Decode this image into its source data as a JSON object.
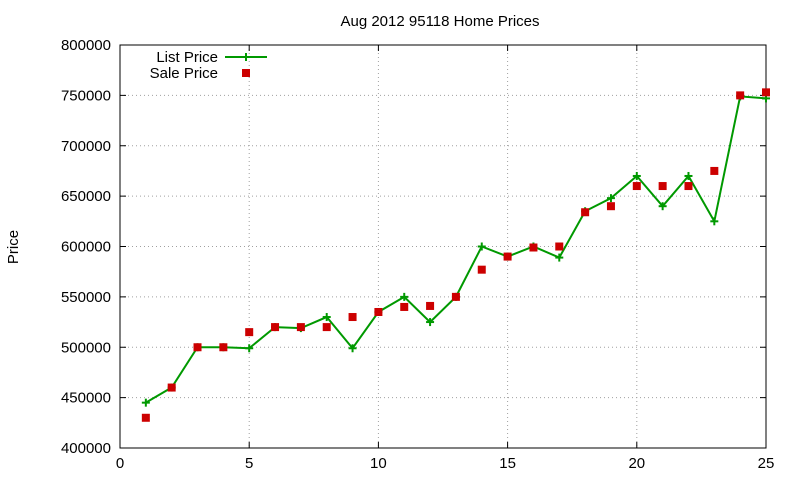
{
  "chart_data": {
    "type": "line",
    "title": "Aug 2012 95118 Home Prices",
    "xlabel": "",
    "ylabel": "Price",
    "xlim": [
      0,
      25
    ],
    "ylim": [
      400000,
      800000
    ],
    "x_ticks": [
      0,
      5,
      10,
      15,
      20,
      25
    ],
    "y_ticks": [
      400000,
      450000,
      500000,
      550000,
      600000,
      650000,
      700000,
      750000,
      800000
    ],
    "grid": true,
    "legend_position": "top-left",
    "series": [
      {
        "name": "List Price",
        "style": "line-plus",
        "color": "#009900",
        "x": [
          1,
          2,
          3,
          4,
          5,
          6,
          7,
          8,
          9,
          10,
          11,
          12,
          13,
          14,
          15,
          16,
          17,
          18,
          19,
          20,
          21,
          22,
          23,
          24,
          25
        ],
        "values": [
          445000,
          460000,
          500000,
          500000,
          499000,
          520000,
          519000,
          530000,
          499000,
          535000,
          550000,
          525000,
          550000,
          600000,
          590000,
          600000,
          589000,
          635000,
          648000,
          670000,
          640000,
          670000,
          625000,
          749000,
          747000
        ]
      },
      {
        "name": "Sale Price",
        "style": "square-marker",
        "color": "#cc0000",
        "x": [
          1,
          2,
          3,
          4,
          5,
          6,
          7,
          8,
          9,
          10,
          11,
          12,
          13,
          14,
          15,
          16,
          17,
          18,
          19,
          20,
          21,
          22,
          23,
          24,
          25
        ],
        "values": [
          430000,
          460000,
          500000,
          500000,
          515000,
          520000,
          520000,
          520000,
          530000,
          535000,
          540000,
          541000,
          550000,
          577000,
          590000,
          599000,
          600000,
          634000,
          640000,
          660000,
          660000,
          660000,
          675000,
          750000,
          753000
        ]
      }
    ]
  }
}
